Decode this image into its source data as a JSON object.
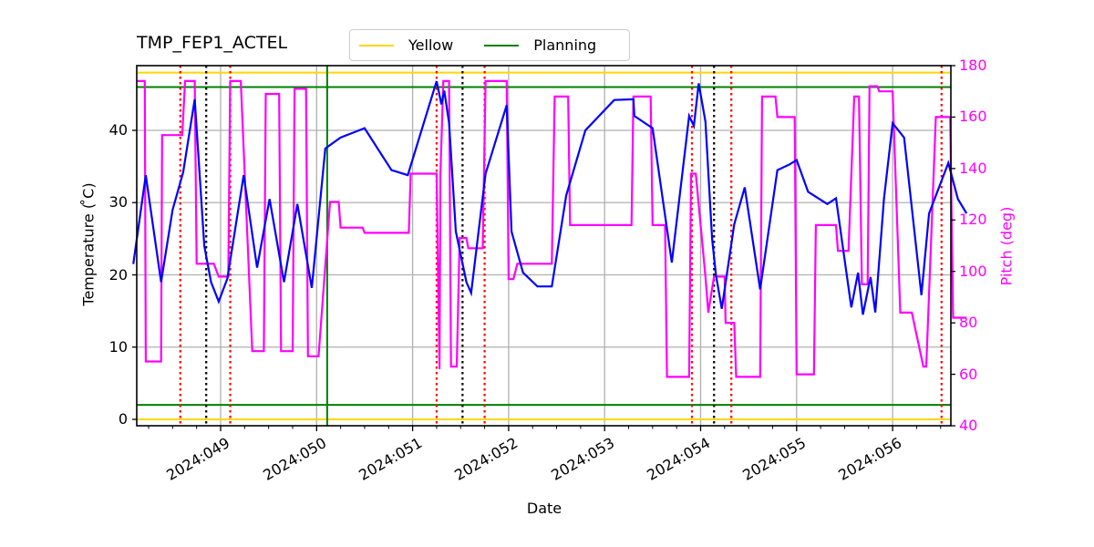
{
  "chart_data": {
    "type": "line",
    "title": "TMP_FEP1_ACTEL",
    "xlabel": "Date",
    "ylabel": "Temperature ($^\\circ$C)",
    "ylabel_display": "Temperature ( ̊C)",
    "ylabel_right": "Pitch (deg)",
    "ylim": [
      -1,
      49
    ],
    "ylim_right": [
      40,
      180
    ],
    "yticks": [
      0,
      10,
      20,
      30,
      40
    ],
    "yticks_right": [
      40,
      60,
      80,
      100,
      120,
      140,
      160,
      180
    ],
    "xticks": [
      "2024:049",
      "2024:050",
      "2024:051",
      "2024:052",
      "2024:053",
      "2024:054",
      "2024:055",
      "2024:056"
    ],
    "xlim": [
      "2024:048.09",
      "2024:056.77"
    ],
    "grid": true,
    "legend": {
      "position": "top center (outside)",
      "entries": [
        {
          "label": "Yellow",
          "color": "#ffd700"
        },
        {
          "label": "Planning",
          "color": "#008000"
        }
      ]
    },
    "limits": {
      "yellow_low": 0,
      "yellow_high": 48,
      "planning_low": 2,
      "planning_high": 46
    },
    "series": [
      {
        "name": "TMP_FEP1_ACTEL",
        "axis": "left",
        "color": "#0000ff",
        "x_day": [
          48.09,
          48.22,
          48.38,
          48.5,
          48.61,
          48.73,
          48.83,
          48.9,
          48.98,
          49.07,
          49.24,
          49.38,
          49.51,
          49.66,
          49.8,
          49.95,
          50.09,
          50.25,
          50.5,
          50.78,
          50.95,
          51.25,
          51.3,
          51.33,
          51.38,
          51.45,
          51.56,
          51.61,
          51.76,
          51.98,
          52.03,
          52.15,
          52.3,
          52.45,
          52.6,
          52.8,
          53.1,
          53.3,
          53.31,
          53.5,
          53.7,
          53.88,
          53.93,
          53.98,
          54.05,
          54.12,
          54.16,
          54.22,
          54.35,
          54.46,
          54.62,
          54.8,
          54.93,
          55.0,
          55.12,
          55.32,
          55.41,
          55.57,
          55.64,
          55.69,
          55.77,
          55.82,
          55.91,
          56.0,
          56.12,
          56.3,
          56.38,
          56.58,
          56.68,
          56.77
        ],
        "y": [
          21.5,
          33.8,
          19.0,
          29,
          34.2,
          44.3,
          24,
          19,
          16.3,
          19.5,
          33.8,
          21.0,
          30.5,
          19.0,
          29.8,
          18.2,
          37.5,
          39.0,
          40.3,
          34.5,
          33.8,
          46.8,
          43.6,
          45.5,
          41.0,
          26.0,
          19.0,
          17.5,
          34.0,
          43.5,
          26.0,
          20.3,
          18.4,
          18.4,
          31.0,
          40.0,
          44.2,
          44.3,
          42.0,
          40.3,
          21.7,
          42.0,
          40.6,
          46.5,
          41.2,
          25.0,
          20.0,
          15.3,
          27.0,
          32.1,
          18.0,
          34.5,
          35.3,
          35.9,
          31.5,
          29.8,
          30.6,
          15.5,
          20.3,
          14.5,
          19.7,
          14.8,
          30.5,
          41.0,
          39.0,
          17.2,
          28.5,
          35.5,
          30.5,
          28.5
        ]
      },
      {
        "name": "Pitch",
        "axis": "right",
        "color": "#ff00ff",
        "note": "step function, values in degrees",
        "x_day": [
          48.09,
          48.21,
          48.22,
          48.38,
          48.39,
          48.6,
          48.63,
          48.73,
          48.75,
          48.93,
          48.98,
          49.08,
          49.1,
          49.21,
          49.33,
          49.45,
          49.47,
          49.61,
          49.63,
          49.75,
          49.77,
          49.89,
          49.91,
          50.02,
          50.14,
          50.23,
          50.25,
          50.48,
          50.5,
          50.96,
          50.98,
          51.25,
          51.28,
          51.29,
          51.32,
          51.38,
          51.4,
          51.46,
          51.49,
          51.56,
          51.58,
          51.73,
          51.76,
          51.98,
          52.0,
          52.05,
          52.09,
          52.45,
          52.48,
          52.62,
          52.64,
          53.28,
          53.3,
          53.48,
          53.5,
          53.63,
          53.65,
          53.88,
          53.9,
          53.95,
          54.05,
          54.08,
          54.14,
          54.25,
          54.26,
          54.35,
          54.37,
          54.62,
          54.64,
          54.78,
          54.8,
          54.98,
          55.0,
          55.18,
          55.2,
          55.41,
          55.43,
          55.54,
          55.6,
          55.65,
          55.68,
          55.74,
          55.76,
          55.84,
          55.86,
          56.0,
          56.08,
          56.2,
          56.32,
          56.35,
          56.45,
          56.6,
          56.63,
          56.77
        ],
        "y": [
          174,
          174,
          65,
          65,
          153,
          153,
          174,
          174,
          103,
          103,
          98,
          98,
          174,
          174,
          69,
          69,
          169,
          169,
          69,
          69,
          171,
          171,
          67,
          67,
          127,
          127,
          117,
          117,
          115,
          115,
          138,
          138,
          62,
          138,
          174,
          174,
          63,
          63,
          113,
          113,
          109,
          109,
          174,
          174,
          97,
          97,
          103,
          103,
          168,
          168,
          118,
          118,
          168,
          168,
          118,
          118,
          59,
          59,
          138,
          138,
          98,
          84,
          98,
          98,
          80,
          80,
          59,
          59,
          168,
          168,
          160,
          160,
          60,
          60,
          118,
          118,
          108,
          108,
          168,
          168,
          95,
          95,
          172,
          172,
          170,
          170,
          84,
          84,
          63,
          63,
          160,
          160,
          82,
          82
        ]
      }
    ],
    "vertical_markers": [
      {
        "x": "2024:048.58",
        "style": "dotted",
        "color": "#ff0000"
      },
      {
        "x": "2024:048.85",
        "style": "dotted",
        "color": "#000000"
      },
      {
        "x": "2024:049.10",
        "style": "dotted",
        "color": "#ff0000"
      },
      {
        "x": "2024:050.11",
        "style": "solid",
        "color": "#008000"
      },
      {
        "x": "2024:051.25",
        "style": "dotted",
        "color": "#ff0000"
      },
      {
        "x": "2024:051.52",
        "style": "dotted",
        "color": "#000000"
      },
      {
        "x": "2024:051.75",
        "style": "dotted",
        "color": "#ff0000"
      },
      {
        "x": "2024:053.91",
        "style": "dotted",
        "color": "#ff0000"
      },
      {
        "x": "2024:054.14",
        "style": "dotted",
        "color": "#000000"
      },
      {
        "x": "2024:054.32",
        "style": "dotted",
        "color": "#ff0000"
      },
      {
        "x": "2024:056.51",
        "style": "dotted",
        "color": "#ff0000"
      }
    ]
  },
  "colors": {
    "temperature": "#0000ff",
    "pitch": "#ff00ff",
    "yellow_limit": "#ffd700",
    "planning_limit": "#008000",
    "grid": "#b0b0b0"
  }
}
